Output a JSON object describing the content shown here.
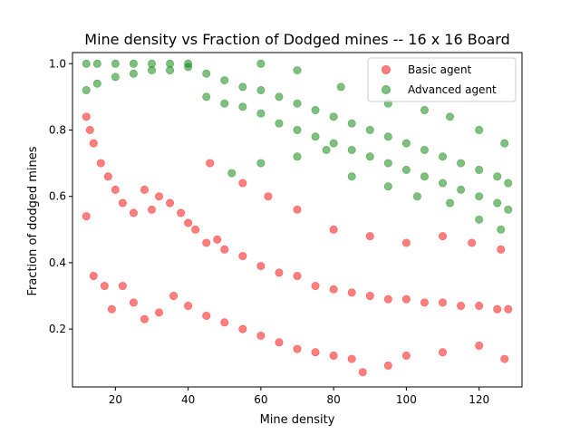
{
  "chart_data": {
    "type": "scatter",
    "title": "Mine density vs Fraction of Dodged mines -- 16 x 16 Board",
    "xlabel": "Mine density",
    "ylabel": "Fraction of dodged mines",
    "xlim": [
      8.2,
      131.8
    ],
    "ylim": [
      0.0255,
      1.0335
    ],
    "xticks": [
      "20",
      "40",
      "60",
      "80",
      "100",
      "120"
    ],
    "xtick_values": [
      20,
      40,
      60,
      80,
      100,
      120
    ],
    "yticks": [
      "0.2",
      "0.4",
      "0.6",
      "0.8",
      "1.0"
    ],
    "ytick_values": [
      0.2,
      0.4,
      0.6,
      0.8,
      1.0
    ],
    "legend_position": "top-right",
    "grid": false,
    "series": [
      {
        "name": "Basic agent",
        "color": "#ff0000",
        "opacity": 0.5,
        "shape": "circle",
        "points": [
          [
            12,
            0.84
          ],
          [
            13,
            0.8
          ],
          [
            14,
            0.76
          ],
          [
            16,
            0.7
          ],
          [
            18,
            0.66
          ],
          [
            20,
            0.62
          ],
          [
            22,
            0.58
          ],
          [
            25,
            0.55
          ],
          [
            28,
            0.62
          ],
          [
            30,
            0.56
          ],
          [
            32,
            0.6
          ],
          [
            35,
            0.58
          ],
          [
            38,
            0.55
          ],
          [
            40,
            0.52
          ],
          [
            42,
            0.5
          ],
          [
            45,
            0.46
          ],
          [
            48,
            0.47
          ],
          [
            50,
            0.44
          ],
          [
            55,
            0.42
          ],
          [
            60,
            0.39
          ],
          [
            65,
            0.37
          ],
          [
            70,
            0.36
          ],
          [
            75,
            0.33
          ],
          [
            80,
            0.32
          ],
          [
            85,
            0.31
          ],
          [
            90,
            0.3
          ],
          [
            95,
            0.29
          ],
          [
            100,
            0.29
          ],
          [
            105,
            0.28
          ],
          [
            110,
            0.28
          ],
          [
            115,
            0.27
          ],
          [
            120,
            0.27
          ],
          [
            125,
            0.26
          ],
          [
            128,
            0.26
          ],
          [
            12,
            0.54
          ],
          [
            14,
            0.36
          ],
          [
            17,
            0.33
          ],
          [
            19,
            0.26
          ],
          [
            22,
            0.33
          ],
          [
            25,
            0.28
          ],
          [
            28,
            0.23
          ],
          [
            32,
            0.25
          ],
          [
            36,
            0.3
          ],
          [
            40,
            0.27
          ],
          [
            45,
            0.24
          ],
          [
            50,
            0.22
          ],
          [
            55,
            0.2
          ],
          [
            60,
            0.18
          ],
          [
            65,
            0.16
          ],
          [
            70,
            0.14
          ],
          [
            75,
            0.13
          ],
          [
            80,
            0.12
          ],
          [
            85,
            0.11
          ],
          [
            88,
            0.07
          ],
          [
            95,
            0.09
          ],
          [
            100,
            0.12
          ],
          [
            110,
            0.13
          ],
          [
            120,
            0.15
          ],
          [
            127,
            0.11
          ],
          [
            46,
            0.7
          ],
          [
            55,
            0.64
          ],
          [
            62,
            0.6
          ],
          [
            70,
            0.56
          ],
          [
            80,
            0.5
          ],
          [
            90,
            0.48
          ],
          [
            100,
            0.46
          ],
          [
            110,
            0.48
          ],
          [
            118,
            0.46
          ],
          [
            126,
            0.44
          ]
        ]
      },
      {
        "name": "Advanced agent",
        "color": "#008000",
        "opacity": 0.5,
        "shape": "circle",
        "points": [
          [
            12,
            1.0
          ],
          [
            15,
            1.0
          ],
          [
            20,
            1.0
          ],
          [
            25,
            1.0
          ],
          [
            30,
            1.0
          ],
          [
            35,
            1.0
          ],
          [
            40,
            1.0
          ],
          [
            12,
            0.92
          ],
          [
            15,
            0.94
          ],
          [
            20,
            0.96
          ],
          [
            25,
            0.97
          ],
          [
            30,
            0.98
          ],
          [
            35,
            0.98
          ],
          [
            40,
            0.99
          ],
          [
            45,
            0.97
          ],
          [
            50,
            0.95
          ],
          [
            55,
            0.93
          ],
          [
            60,
            0.92
          ],
          [
            65,
            0.9
          ],
          [
            70,
            0.88
          ],
          [
            75,
            0.86
          ],
          [
            80,
            0.84
          ],
          [
            85,
            0.82
          ],
          [
            90,
            0.8
          ],
          [
            95,
            0.78
          ],
          [
            100,
            0.76
          ],
          [
            105,
            0.74
          ],
          [
            110,
            0.72
          ],
          [
            115,
            0.7
          ],
          [
            120,
            0.68
          ],
          [
            125,
            0.66
          ],
          [
            128,
            0.64
          ],
          [
            45,
            0.9
          ],
          [
            50,
            0.88
          ],
          [
            55,
            0.87
          ],
          [
            60,
            0.85
          ],
          [
            65,
            0.82
          ],
          [
            70,
            0.8
          ],
          [
            75,
            0.78
          ],
          [
            80,
            0.76
          ],
          [
            85,
            0.74
          ],
          [
            90,
            0.72
          ],
          [
            95,
            0.7
          ],
          [
            100,
            0.68
          ],
          [
            105,
            0.66
          ],
          [
            110,
            0.64
          ],
          [
            115,
            0.62
          ],
          [
            120,
            0.6
          ],
          [
            125,
            0.58
          ],
          [
            128,
            0.56
          ],
          [
            52,
            0.67
          ],
          [
            60,
            0.7
          ],
          [
            70,
            0.72
          ],
          [
            78,
            0.74
          ],
          [
            85,
            0.66
          ],
          [
            95,
            0.63
          ],
          [
            103,
            0.6
          ],
          [
            112,
            0.58
          ],
          [
            120,
            0.53
          ],
          [
            126,
            0.5
          ],
          [
            60,
            1.0
          ],
          [
            70,
            0.98
          ],
          [
            82,
            0.93
          ],
          [
            95,
            0.88
          ],
          [
            105,
            0.86
          ],
          [
            112,
            0.84
          ],
          [
            120,
            0.8
          ],
          [
            127,
            0.76
          ]
        ]
      }
    ]
  }
}
